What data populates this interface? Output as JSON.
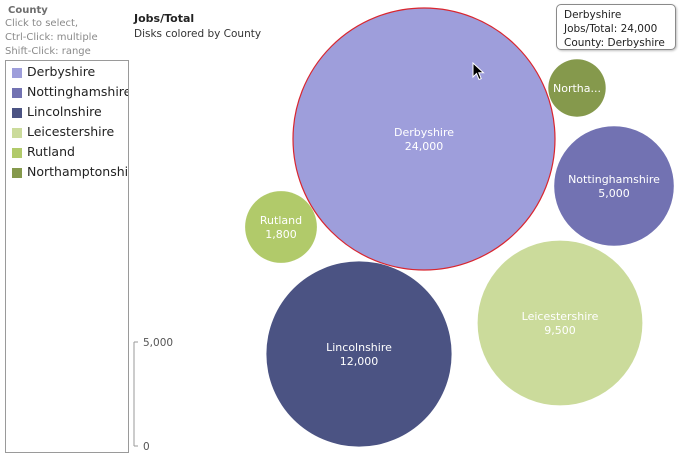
{
  "legend": {
    "title": "County",
    "hints": [
      "Click to select,",
      "Ctrl-Click: multiple",
      "Shift-Click: range"
    ],
    "items": [
      {
        "label": "Derbyshire",
        "color": "#9e9edb"
      },
      {
        "label": "Nottinghamshire",
        "color": "#7272b2"
      },
      {
        "label": "Lincolnshire",
        "color": "#4b5383"
      },
      {
        "label": "Leicestershire",
        "color": "#cbdb9b"
      },
      {
        "label": "Rutland",
        "color": "#b1ca6a"
      },
      {
        "label": "Northamptonshire",
        "color": "#85994c"
      }
    ]
  },
  "chart": {
    "title": "Jobs/Total",
    "subtitle": "Disks colored by County"
  },
  "size_legend": {
    "ticks": [
      "5,000",
      "0"
    ]
  },
  "tooltip": {
    "lines": [
      "Derbyshire",
      "Jobs/Total: 24,000",
      "County: Derbyshire"
    ]
  },
  "chart_data": {
    "type": "bubble",
    "title": "Jobs/Total",
    "subtitle": "Disks colored by County",
    "size_measure": "Jobs/Total",
    "color_by": "County",
    "size_ticks": [
      5000,
      0
    ],
    "selected": "Derbyshire",
    "bubbles": [
      {
        "name": "Derbyshire",
        "label": "Derbyshire",
        "value": 24000,
        "value_label": "24,000",
        "color": "#9e9edb",
        "text_color": "#ffffff"
      },
      {
        "name": "Northamptonshire",
        "label": "Northa...",
        "value": 1150,
        "value_label": "",
        "color": "#85994c",
        "text_color": "#ffffff"
      },
      {
        "name": "Nottinghamshire",
        "label": "Nottinghamshire",
        "value": 5000,
        "value_label": "5,000",
        "color": "#7272b2",
        "text_color": "#ffffff"
      },
      {
        "name": "Rutland",
        "label": "Rutland",
        "value": 1800,
        "value_label": "1,800",
        "color": "#b1ca6a",
        "text_color": "#ffffff"
      },
      {
        "name": "Lincolnshire",
        "label": "Lincolnshire",
        "value": 12000,
        "value_label": "12,000",
        "color": "#4b5383",
        "text_color": "#ffffff"
      },
      {
        "name": "Leicestershire",
        "label": "Leicestershire",
        "value": 9500,
        "value_label": "9,500",
        "color": "#cbdb9b",
        "text_color": "#ffffff"
      }
    ]
  }
}
